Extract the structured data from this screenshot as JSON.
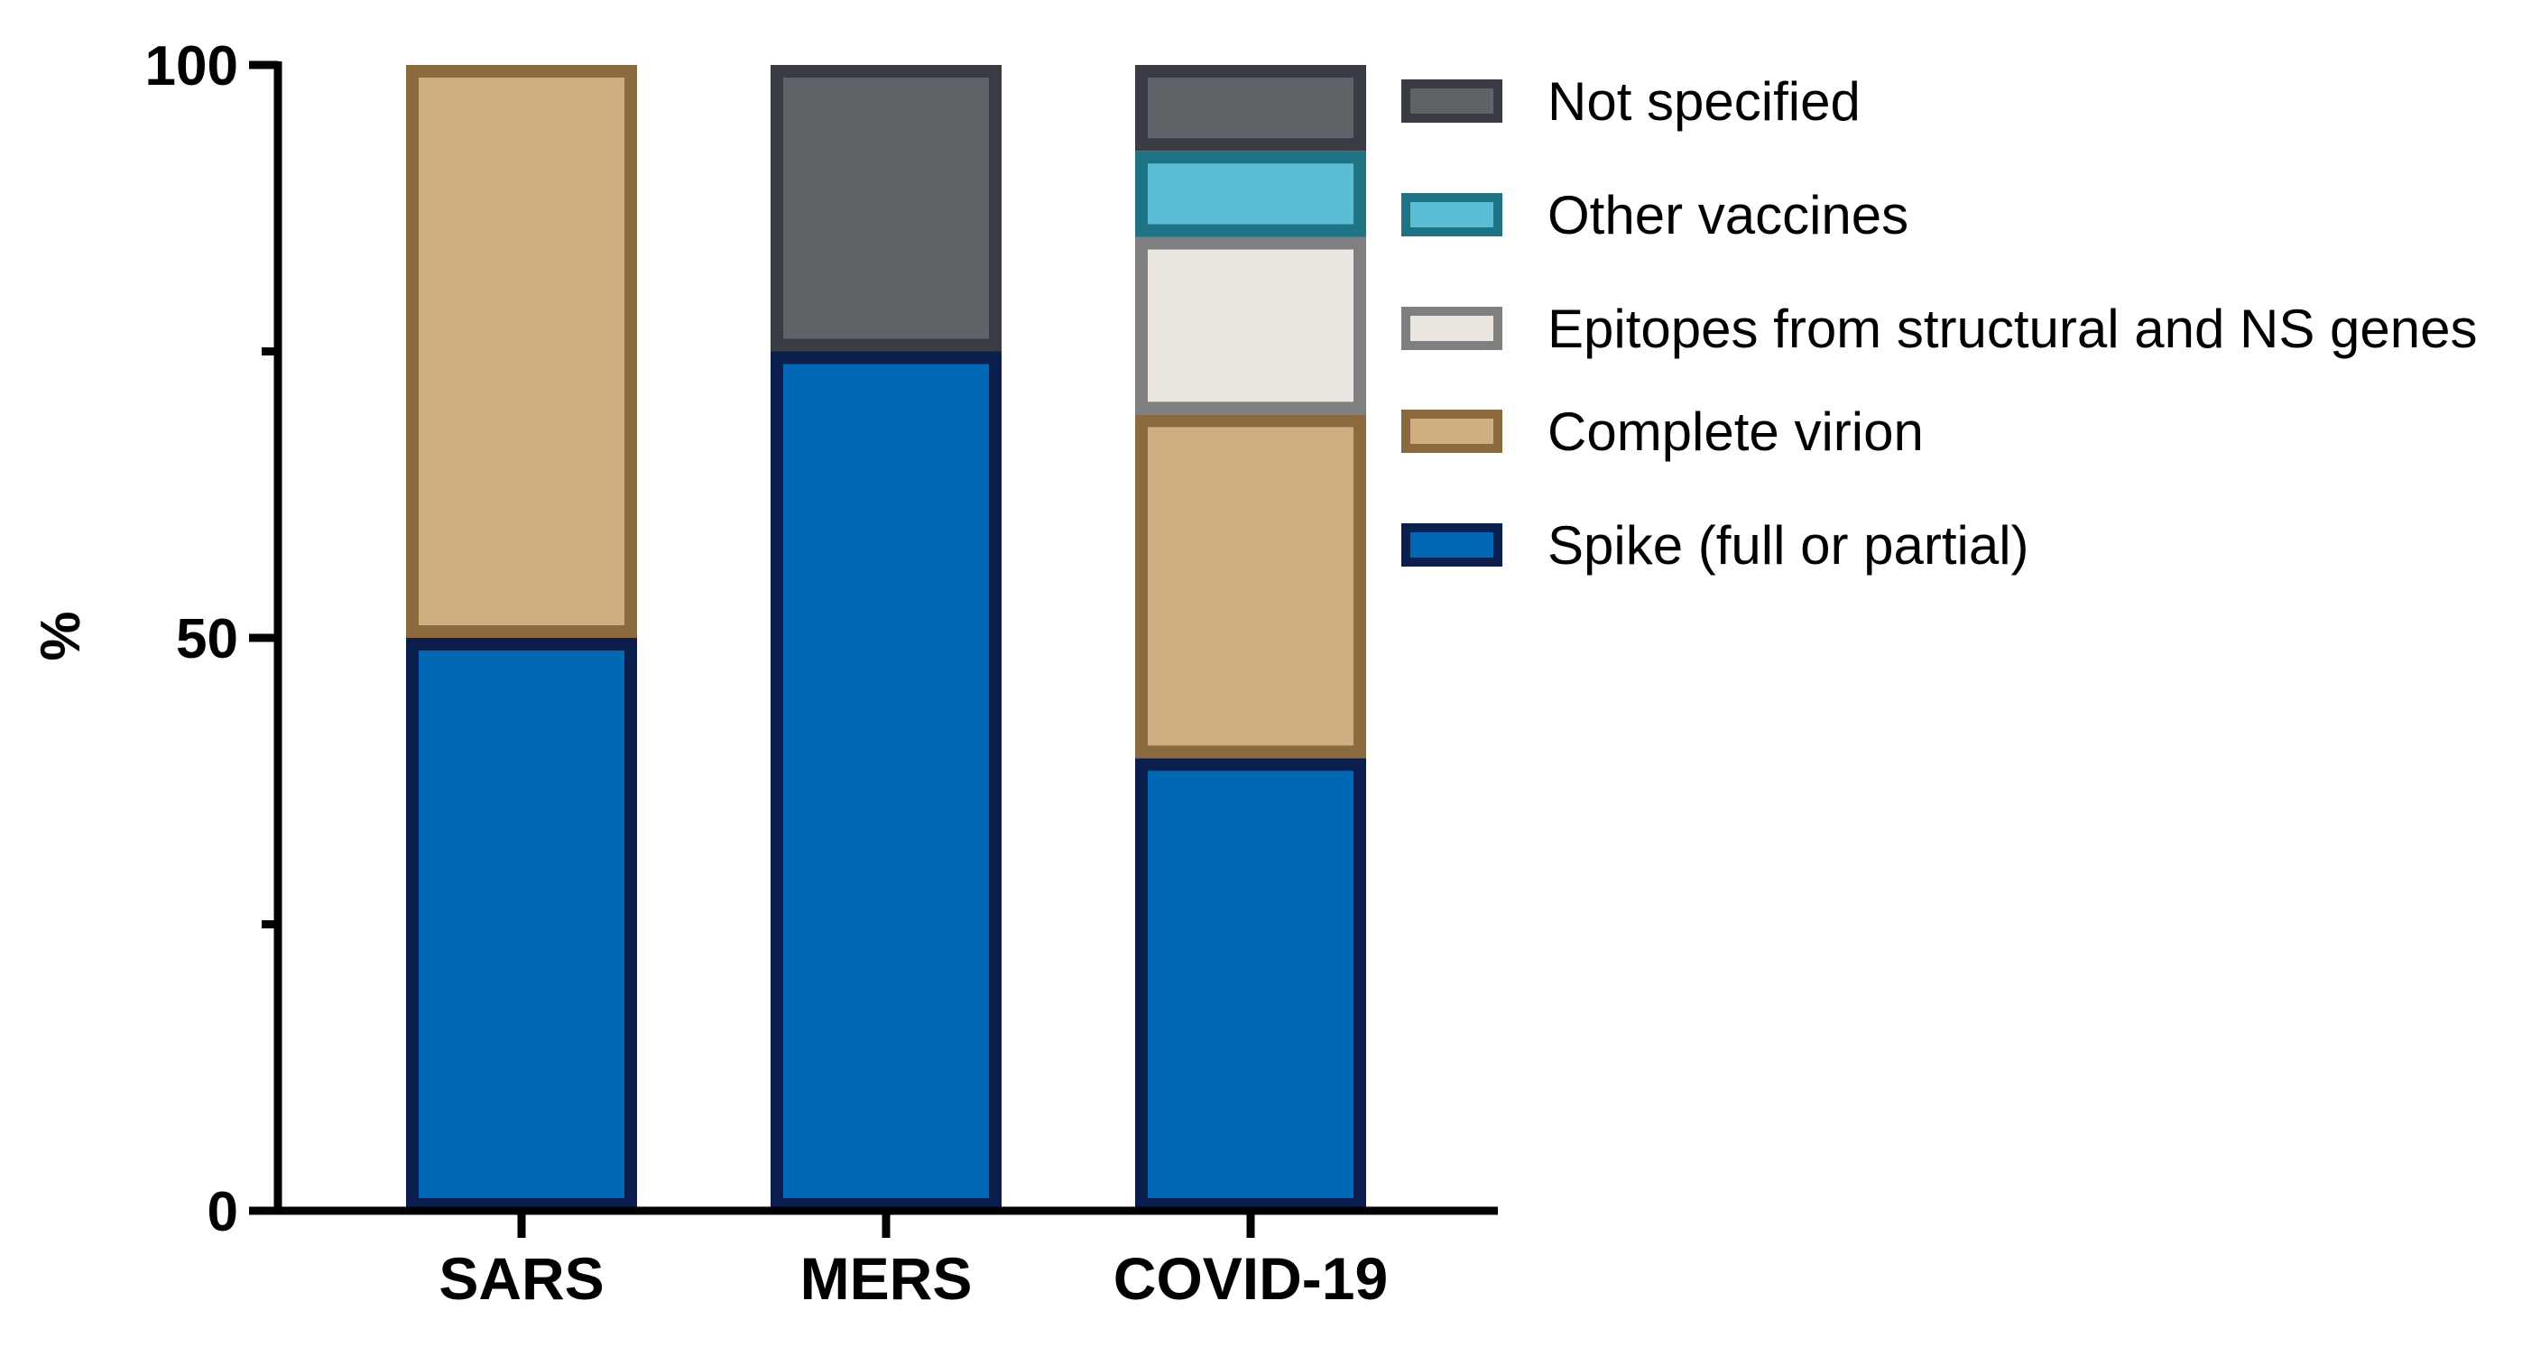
{
  "chart_data": {
    "type": "bar",
    "stacked": true,
    "title": "",
    "xlabel": "",
    "ylabel": "%",
    "ylim": [
      0,
      100
    ],
    "yticks": [
      0,
      50,
      100
    ],
    "yminor_ticks": [
      25,
      75
    ],
    "categories": [
      "SARS",
      "MERS",
      "COVID-19"
    ],
    "series": [
      {
        "name": "Spike (full or partial)",
        "values": [
          50,
          75,
          39.5
        ],
        "fill": "#0068B5",
        "stroke": "#0A1F4D"
      },
      {
        "name": "Complete virion",
        "values": [
          50,
          0,
          30
        ],
        "fill": "#CFAD7F",
        "stroke": "#8A6A3E"
      },
      {
        "name": "Epitopes from structural and NS genes",
        "values": [
          0,
          0,
          15.5
        ],
        "fill": "#EAE5DF",
        "stroke": "#7F7F7F"
      },
      {
        "name": "Other vaccines",
        "values": [
          0,
          0,
          7.5
        ],
        "fill": "#5BBCD6",
        "stroke": "#1E7385"
      },
      {
        "name": "Not specified",
        "values": [
          0,
          25,
          7.5
        ],
        "fill": "#5D6366",
        "stroke": "#393C42"
      }
    ],
    "legend": {
      "placement": "right",
      "order": [
        "Not specified",
        "Other vaccines",
        "Epitopes from structural and NS genes",
        "Complete virion",
        "Spike (full or partial)"
      ]
    }
  }
}
